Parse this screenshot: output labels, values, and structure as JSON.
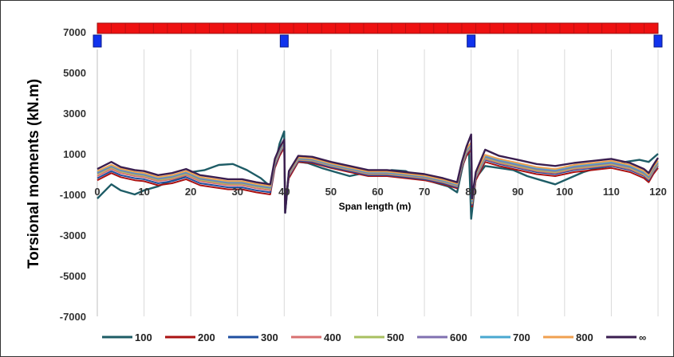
{
  "chart_data": {
    "type": "line",
    "title": "",
    "xlabel": "Span length (m)",
    "ylabel": "Torsional  moments (kN.m)",
    "xlim": [
      0,
      120
    ],
    "ylim": [
      -7000,
      7000
    ],
    "x_ticks": [
      0,
      10,
      20,
      30,
      40,
      50,
      60,
      70,
      80,
      90,
      100,
      110,
      120
    ],
    "y_ticks": [
      -7000,
      -5000,
      -3000,
      -1000,
      1000,
      3000,
      5000,
      7000
    ],
    "grid": "vertical",
    "legend_position": "bottom",
    "supports_x": [
      0,
      40,
      80,
      120
    ],
    "beam_color": "#ee1111",
    "support_color": "#1133ee",
    "series": [
      {
        "name": "100",
        "color": "#1e5c66",
        "x": [
          0,
          3,
          5,
          8,
          10,
          13,
          15,
          18,
          20,
          23,
          26,
          29,
          32,
          35,
          37,
          38,
          39,
          40,
          40.2,
          41,
          43,
          45,
          48,
          51,
          54,
          57,
          60,
          63,
          66,
          69,
          72,
          75,
          77,
          78,
          79,
          79.5,
          80,
          81,
          83,
          86,
          89,
          92,
          95,
          98,
          101,
          104,
          107,
          110,
          113,
          116,
          118,
          120
        ],
        "y": [
          -1200,
          -500,
          -800,
          -1000,
          -800,
          -600,
          -400,
          -200,
          100,
          200,
          450,
          500,
          200,
          -200,
          -600,
          400,
          1500,
          2100,
          -1900,
          100,
          600,
          550,
          300,
          100,
          -100,
          50,
          0,
          200,
          150,
          -200,
          -400,
          -600,
          -900,
          200,
          1200,
          1400,
          -2200,
          -200,
          400,
          300,
          200,
          -100,
          -300,
          -500,
          -200,
          100,
          300,
          400,
          600,
          700,
          600,
          1000
        ]
      },
      {
        "name": "200",
        "color": "#aa1111",
        "x": [
          0,
          3,
          5,
          8,
          10,
          13,
          16,
          19,
          22,
          25,
          28,
          31,
          34,
          37,
          38,
          39,
          40,
          40.2,
          41,
          43,
          46,
          50,
          54,
          58,
          62,
          66,
          70,
          74,
          77,
          78,
          79,
          80,
          80.2,
          81,
          83,
          86,
          90,
          94,
          98,
          102,
          106,
          110,
          114,
          117,
          118,
          119,
          120
        ],
        "y": [
          -300,
          50,
          -150,
          -300,
          -350,
          -550,
          -450,
          -250,
          -550,
          -650,
          -750,
          -750,
          -900,
          -1000,
          300,
          900,
          1300,
          -1300,
          -200,
          600,
          550,
          300,
          100,
          -100,
          -100,
          -200,
          -300,
          -500,
          -700,
          300,
          900,
          1200,
          -1600,
          -300,
          600,
          400,
          200,
          0,
          -100,
          100,
          200,
          300,
          100,
          -200,
          -400,
          0,
          300
        ]
      },
      {
        "name": "300",
        "color": "#1f4fa0",
        "x": [
          0,
          3,
          5,
          8,
          10,
          13,
          16,
          19,
          22,
          25,
          28,
          31,
          34,
          37,
          38,
          39,
          40,
          40.2,
          41,
          43,
          46,
          50,
          54,
          58,
          62,
          66,
          70,
          74,
          77,
          78,
          79,
          80,
          80.2,
          81,
          83,
          86,
          90,
          94,
          98,
          102,
          106,
          110,
          114,
          117,
          118,
          119,
          120
        ],
        "y": [
          -200,
          150,
          -50,
          -200,
          -250,
          -450,
          -350,
          -150,
          -450,
          -550,
          -650,
          -650,
          -800,
          -900,
          400,
          1000,
          1400,
          -1400,
          -100,
          650,
          600,
          350,
          150,
          -50,
          -50,
          -150,
          -250,
          -450,
          -650,
          350,
          1000,
          1300,
          -1500,
          -200,
          700,
          500,
          300,
          100,
          0,
          200,
          300,
          400,
          200,
          -100,
          -300,
          100,
          400
        ]
      },
      {
        "name": "400",
        "color": "#d87070",
        "x": [
          0,
          3,
          5,
          8,
          10,
          13,
          16,
          19,
          22,
          25,
          28,
          31,
          34,
          37,
          38,
          39,
          40,
          40.2,
          41,
          43,
          46,
          50,
          54,
          58,
          62,
          66,
          70,
          74,
          77,
          78,
          79,
          80,
          80.2,
          81,
          83,
          86,
          90,
          94,
          98,
          102,
          106,
          110,
          114,
          117,
          118,
          119,
          120
        ],
        "y": [
          -100,
          250,
          50,
          -100,
          -150,
          -350,
          -250,
          -50,
          -350,
          -450,
          -550,
          -550,
          -700,
          -800,
          500,
          1050,
          1450,
          -1450,
          -50,
          700,
          650,
          400,
          200,
          0,
          0,
          -100,
          -200,
          -400,
          -600,
          400,
          1050,
          1350,
          -1450,
          -150,
          750,
          550,
          350,
          150,
          50,
          250,
          350,
          450,
          250,
          -50,
          -250,
          150,
          450
        ]
      },
      {
        "name": "500",
        "color": "#a8c060",
        "x": [
          0,
          3,
          5,
          8,
          10,
          13,
          16,
          19,
          22,
          25,
          28,
          31,
          34,
          37,
          38,
          39,
          40,
          40.2,
          41,
          43,
          46,
          50,
          54,
          58,
          62,
          66,
          70,
          74,
          77,
          78,
          79,
          80,
          80.2,
          81,
          83,
          86,
          90,
          94,
          98,
          102,
          106,
          110,
          114,
          117,
          118,
          119,
          120
        ],
        "y": [
          0,
          330,
          130,
          -20,
          -80,
          -280,
          -180,
          20,
          -280,
          -380,
          -480,
          -480,
          -620,
          -720,
          560,
          1100,
          1500,
          -1500,
          0,
          730,
          680,
          430,
          230,
          30,
          30,
          -70,
          -170,
          -370,
          -570,
          430,
          1100,
          1400,
          -1400,
          -100,
          800,
          600,
          400,
          200,
          100,
          300,
          400,
          500,
          300,
          0,
          -200,
          200,
          500
        ]
      },
      {
        "name": "600",
        "color": "#8070b0",
        "x": [
          0,
          3,
          5,
          8,
          10,
          13,
          16,
          19,
          22,
          25,
          28,
          31,
          34,
          37,
          38,
          39,
          40,
          40.2,
          41,
          43,
          46,
          50,
          54,
          58,
          62,
          66,
          70,
          74,
          77,
          78,
          79,
          80,
          80.2,
          81,
          83,
          86,
          90,
          94,
          98,
          102,
          106,
          110,
          114,
          117,
          118,
          119,
          120
        ],
        "y": [
          50,
          380,
          180,
          30,
          -30,
          -230,
          -130,
          70,
          -230,
          -330,
          -430,
          -430,
          -570,
          -670,
          600,
          1150,
          1550,
          -1550,
          30,
          760,
          710,
          460,
          260,
          60,
          60,
          -40,
          -140,
          -340,
          -540,
          460,
          1150,
          1450,
          -1350,
          -60,
          850,
          650,
          450,
          250,
          150,
          350,
          450,
          550,
          350,
          50,
          -150,
          250,
          550
        ]
      },
      {
        "name": "700",
        "color": "#4aa8d0",
        "x": [
          0,
          3,
          5,
          8,
          10,
          13,
          16,
          19,
          22,
          25,
          28,
          31,
          34,
          37,
          38,
          39,
          40,
          40.2,
          41,
          43,
          46,
          50,
          54,
          58,
          62,
          66,
          70,
          74,
          77,
          78,
          79,
          80,
          80.2,
          81,
          83,
          86,
          90,
          94,
          98,
          102,
          106,
          110,
          114,
          117,
          118,
          119,
          120
        ],
        "y": [
          100,
          420,
          220,
          70,
          10,
          -190,
          -90,
          110,
          -190,
          -290,
          -390,
          -390,
          -530,
          -630,
          640,
          1200,
          1600,
          -1600,
          60,
          790,
          740,
          490,
          290,
          90,
          90,
          -10,
          -110,
          -310,
          -510,
          490,
          1200,
          1500,
          -1300,
          -20,
          900,
          700,
          500,
          300,
          200,
          400,
          500,
          600,
          400,
          100,
          -100,
          300,
          600
        ]
      },
      {
        "name": "800",
        "color": "#f0a050",
        "x": [
          0,
          3,
          5,
          8,
          10,
          13,
          16,
          19,
          22,
          25,
          28,
          31,
          34,
          37,
          38,
          39,
          40,
          40.2,
          41,
          43,
          46,
          50,
          54,
          58,
          62,
          66,
          70,
          74,
          77,
          78,
          79,
          80,
          80.2,
          81,
          83,
          86,
          90,
          94,
          98,
          102,
          106,
          110,
          114,
          117,
          118,
          119,
          120
        ],
        "y": [
          150,
          460,
          260,
          110,
          50,
          -150,
          -50,
          150,
          -150,
          -250,
          -350,
          -350,
          -490,
          -590,
          680,
          1250,
          1650,
          -1650,
          90,
          820,
          770,
          520,
          320,
          120,
          120,
          20,
          -80,
          -280,
          -480,
          520,
          1250,
          1550,
          -1250,
          20,
          950,
          750,
          550,
          350,
          250,
          450,
          550,
          650,
          450,
          150,
          -50,
          350,
          650
        ]
      },
      {
        "name": "∞",
        "color": "#3a1e50",
        "x": [
          0,
          3,
          5,
          8,
          10,
          13,
          16,
          19,
          22,
          25,
          28,
          31,
          34,
          37,
          38,
          39,
          40,
          40.2,
          41,
          43,
          46,
          50,
          54,
          58,
          62,
          66,
          70,
          74,
          77,
          78,
          79,
          80,
          80.2,
          81,
          83,
          86,
          90,
          94,
          98,
          102,
          106,
          110,
          114,
          117,
          118,
          119,
          120
        ],
        "y": [
          250,
          600,
          350,
          200,
          150,
          -50,
          50,
          250,
          -50,
          -150,
          -250,
          -250,
          -400,
          -500,
          750,
          1300,
          1700,
          -1900,
          150,
          900,
          850,
          600,
          400,
          200,
          200,
          100,
          0,
          -200,
          -400,
          600,
          1350,
          1950,
          -1200,
          100,
          1200,
          900,
          700,
          500,
          400,
          550,
          650,
          750,
          550,
          250,
          50,
          450,
          800
        ]
      }
    ]
  }
}
